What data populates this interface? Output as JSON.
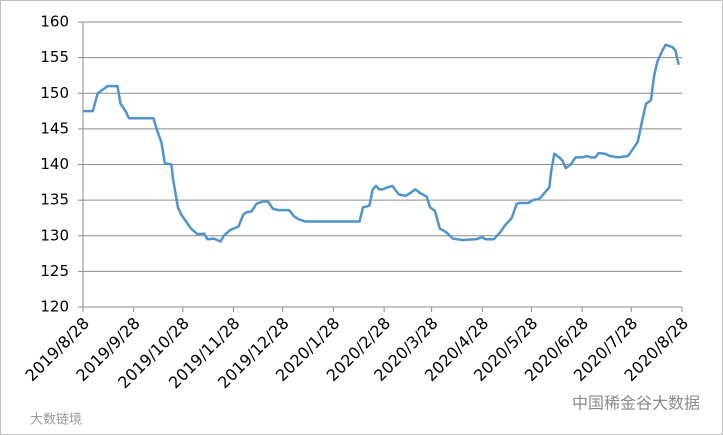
{
  "chart_data": {
    "type": "line",
    "color": "#4f94cd",
    "grid": true,
    "x": [
      "2019/8/28",
      "2019/9/3",
      "2019/9/6",
      "2019/9/9",
      "2019/9/12",
      "2019/9/18",
      "2019/9/20",
      "2019/9/23",
      "2019/9/25",
      "2019/10/10",
      "2019/10/12",
      "2019/10/15",
      "2019/10/17",
      "2019/10/21",
      "2019/10/22",
      "2019/10/25",
      "2019/10/27",
      "2019/10/30",
      "2019/11/2",
      "2019/11/6",
      "2019/11/10",
      "2019/11/12",
      "2019/11/16",
      "2019/11/20",
      "2019/11/22",
      "2019/11/26",
      "2019/12/1",
      "2019/12/4",
      "2019/12/6",
      "2019/12/9",
      "2019/12/12",
      "2019/12/16",
      "2019/12/19",
      "2019/12/22",
      "2019/12/25",
      "2020/1/1",
      "2020/1/4",
      "2020/1/7",
      "2020/1/11",
      "2020/1/19",
      "2020/2/13",
      "2020/2/15",
      "2020/2/19",
      "2020/2/21",
      "2020/2/23",
      "2020/2/25",
      "2020/2/27",
      "2020/3/1",
      "2020/3/4",
      "2020/3/8",
      "2020/3/12",
      "2020/3/15",
      "2020/3/18",
      "2020/3/21",
      "2020/3/25",
      "2020/3/27",
      "2020/3/30",
      "2020/4/2",
      "2020/4/6",
      "2020/4/10",
      "2020/4/13",
      "2020/4/16",
      "2020/4/24",
      "2020/4/28",
      "2020/4/30",
      "2020/5/5",
      "2020/5/9",
      "2020/5/12",
      "2020/5/16",
      "2020/5/19",
      "2020/5/21",
      "2020/5/26",
      "2020/5/29",
      "2020/6/2",
      "2020/6/5",
      "2020/6/8",
      "2020/6/9",
      "2020/6/11",
      "2020/6/14",
      "2020/6/16",
      "2020/6/18",
      "2020/6/21",
      "2020/6/24",
      "2020/6/28",
      "2020/7/1",
      "2020/7/3",
      "2020/7/6",
      "2020/7/8",
      "2020/7/12",
      "2020/7/15",
      "2020/7/20",
      "2020/7/26",
      "2020/7/30",
      "2020/8/1",
      "2020/8/4",
      "2020/8/6",
      "2020/8/9",
      "2020/8/11",
      "2020/8/13",
      "2020/8/16",
      "2020/8/18",
      "2020/8/22",
      "2020/8/24",
      "2020/8/26"
    ],
    "values": [
      147.5,
      147.5,
      150,
      150.5,
      151,
      151,
      148.5,
      147.5,
      146.5,
      146.5,
      145,
      143,
      140.2,
      140,
      138,
      134,
      133,
      132,
      131,
      130.2,
      130.3,
      129.5,
      129.6,
      129.2,
      130,
      130.8,
      131.3,
      133,
      133.3,
      133.4,
      134.5,
      134.8,
      134.8,
      133.8,
      133.6,
      133.6,
      132.7,
      132.3,
      132,
      132,
      132,
      134,
      134.2,
      136.5,
      137,
      136.5,
      136.5,
      136.8,
      137,
      135.8,
      135.6,
      136,
      136.5,
      136,
      135.5,
      134,
      133.5,
      131,
      130.5,
      129.6,
      129.5,
      129.4,
      129.5,
      129.8,
      129.5,
      129.5,
      130.5,
      131.5,
      132.5,
      134.5,
      134.6,
      134.6,
      135,
      135.2,
      136,
      136.8,
      139,
      141.5,
      141,
      140.5,
      139.5,
      140,
      141,
      141,
      141.2,
      141,
      141,
      141.6,
      141.5,
      141.2,
      141,
      141.2,
      142.5,
      143.2,
      146.5,
      148.5,
      149,
      152.5,
      154.5,
      156,
      156.8,
      156.5,
      156,
      154
    ],
    "xlim": [
      "2019/8/28",
      "2020/8/28"
    ],
    "xticks": [
      "2019/8/28",
      "2019/9/28",
      "2019/10/28",
      "2019/11/28",
      "2019/12/28",
      "2020/1/28",
      "2020/2/28",
      "2020/3/28",
      "2020/4/28",
      "2020/5/28",
      "2020/6/28",
      "2020/7/28",
      "2020/8/28"
    ],
    "ylim": [
      120,
      160
    ],
    "yticks": [
      120,
      125,
      130,
      135,
      140,
      145,
      150,
      155,
      160
    ],
    "annotations": [
      "大数链境",
      "中国稀金谷大数据"
    ]
  }
}
